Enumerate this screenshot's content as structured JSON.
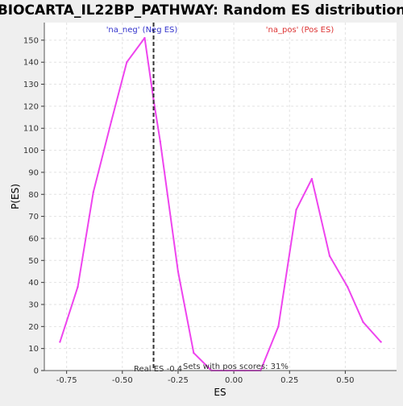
{
  "chart_data": {
    "type": "line",
    "title": "BIOCARTA_IL22BP_PATHWAY: Random ES distribution",
    "xlabel": "ES",
    "ylabel": "P(ES)",
    "xlim": [
      -0.85,
      0.73
    ],
    "ylim": [
      0,
      158
    ],
    "x_ticks": [
      -0.75,
      -0.5,
      -0.25,
      0.0,
      0.25,
      0.5
    ],
    "x_tick_labels": [
      "-0.75",
      "-0.50",
      "-0.25",
      "0.00",
      "0.25",
      "0.50"
    ],
    "y_ticks": [
      0,
      10,
      20,
      30,
      40,
      50,
      60,
      70,
      80,
      90,
      100,
      110,
      120,
      130,
      140,
      150
    ],
    "y_tick_labels": [
      "0",
      "10",
      "20",
      "30",
      "40",
      "50",
      "60",
      "70",
      "80",
      "90",
      "100",
      "110",
      "120",
      "130",
      "140",
      "150"
    ],
    "grid": true,
    "series": [
      {
        "color": "#ee44ee",
        "x": [
          -0.78,
          -0.7,
          -0.63,
          -0.55,
          -0.48,
          -0.4,
          -0.36,
          -0.33,
          -0.25,
          -0.18,
          -0.1,
          -0.03,
          0.05,
          0.12,
          0.2,
          0.28,
          0.35,
          0.43,
          0.51,
          0.58,
          0.66
        ],
        "y": [
          13,
          38,
          81,
          113,
          140,
          151,
          123,
          104,
          45,
          8,
          0,
          0,
          0,
          0,
          20,
          73,
          87,
          52,
          38,
          22,
          13
        ]
      }
    ],
    "real_es": -0.36,
    "annotations": {
      "neg_label": "'na_neg' (Neg ES)",
      "pos_label": "'na_pos' (Pos ES)",
      "real_es_label": "Real ES -0.4",
      "pos_scores_label": "Sets with pos scores: 31%"
    },
    "colors": {
      "series": "#ee44ee",
      "neg_label": "#3333cc",
      "pos_label": "#dd3333",
      "real_es_line": "#333333",
      "plot_bg": "#ffffff",
      "page_bg": "#efefef"
    }
  }
}
